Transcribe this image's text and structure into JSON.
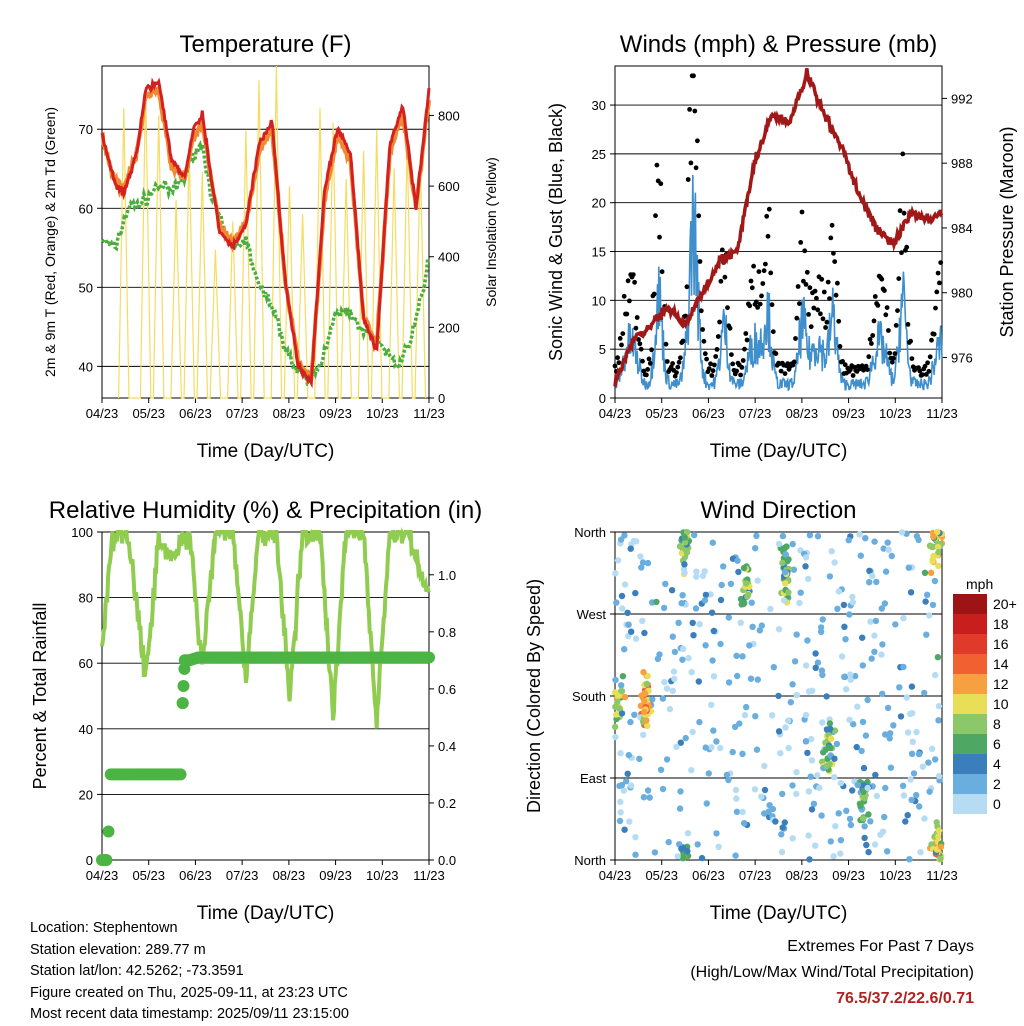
{
  "station": {
    "location_label": "Location: Stephentown",
    "elevation_label": "Station elevation: 289.77 m",
    "latlon_label": "Station lat/lon: 42.5262; -73.3591",
    "created_label": "Figure created on Thu, 2025-09-11, at 23:23 UTC",
    "recent_label": "Most recent data timestamp: 2025/09/11 23:15:00"
  },
  "extremes": {
    "title": "Extremes For Past 7 Days",
    "subtitle": "(High/Low/Max Wind/Total Precipitation)",
    "values": "76.5/37.2/22.6/0.71"
  },
  "colors": {
    "temp_2m": "#d42020",
    "temp_9m": "#f08a30",
    "dewpoint": "#4aae3c",
    "insolation": "#f5dc60",
    "wind": "#3f8fcc",
    "gust": "#000000",
    "pressure": "#a01818",
    "rh": "#8fcc50",
    "precip": "#4cb443"
  },
  "chart_data": [
    {
      "type": "line",
      "title": "Temperature (F)",
      "xlabel": "Time (Day/UTC)",
      "ylabel": "2m & 9m T (Red, Orange) & 2m Td (Green)",
      "y2label": "Solar Insolation (Yellow)",
      "x_ticks": [
        "04/23",
        "05/23",
        "06/23",
        "07/23",
        "08/23",
        "09/23",
        "10/23",
        "11/23"
      ],
      "y_ticks": [
        40,
        50,
        60,
        70
      ],
      "y2_ticks": [
        0,
        200,
        400,
        600,
        800
      ],
      "ylim": [
        36,
        78
      ],
      "y2lim": [
        0,
        940
      ],
      "series": [
        {
          "key": "t2m",
          "x": [
            0,
            0.3,
            0.5,
            0.8,
            1.0,
            1.3,
            1.6,
            1.9,
            2.1,
            2.3,
            2.5,
            2.7,
            3.0,
            3.3,
            3.6,
            3.9,
            4.2,
            4.5,
            4.8,
            5.1,
            5.4,
            5.7,
            6.0,
            6.3,
            6.6,
            6.9,
            7.2,
            7.5
          ],
          "y": [
            69.5,
            63,
            62,
            67,
            75,
            76,
            66,
            64,
            70,
            72,
            64,
            57,
            55,
            58,
            68,
            71,
            51,
            40,
            38,
            62,
            70,
            67,
            46,
            42,
            68,
            73,
            60,
            75
          ]
        },
        {
          "key": "t9m",
          "x": [
            0,
            0.3,
            0.5,
            0.8,
            1.0,
            1.3,
            1.6,
            1.9,
            2.1,
            2.3,
            2.5,
            2.7,
            3.0,
            3.3,
            3.6,
            3.9,
            4.2,
            4.5,
            4.8,
            5.1,
            5.4,
            5.7,
            6.0,
            6.3,
            6.6,
            6.9,
            7.2,
            7.5
          ],
          "y": [
            69,
            63.5,
            62.5,
            67,
            74,
            75,
            65,
            64,
            69,
            71,
            64,
            57.5,
            55.5,
            58,
            67,
            70,
            51,
            40.5,
            38.5,
            61,
            69,
            66,
            46.5,
            42.5,
            67,
            72,
            60,
            74
          ]
        },
        {
          "key": "td",
          "x": [
            0,
            0.3,
            0.6,
            1.0,
            1.3,
            1.6,
            1.9,
            2.1,
            2.3,
            2.5,
            2.8,
            3.0,
            3.3,
            3.6,
            3.9,
            4.1,
            4.4,
            4.7,
            5.0,
            5.3,
            5.6,
            5.9,
            6.2,
            6.5,
            6.8,
            7.1,
            7.4,
            7.5
          ],
          "y": [
            56,
            55,
            60,
            61,
            63,
            62,
            64,
            67,
            68,
            62,
            57,
            55,
            56,
            50,
            48,
            44,
            40,
            38,
            40,
            46,
            47,
            45,
            44,
            42,
            40,
            44,
            50,
            55
          ]
        }
      ],
      "insolation_peaks_x": [
        0.5,
        1.0,
        1.3,
        1.7,
        2.0,
        2.3,
        2.6,
        3.0,
        3.3,
        3.6,
        4.0,
        4.3,
        4.6,
        5.0,
        5.3,
        5.6,
        6.0,
        6.3,
        6.7,
        7.0,
        7.3
      ],
      "insolation_peaks_y": [
        820,
        880,
        800,
        560,
        700,
        640,
        420,
        500,
        760,
        900,
        940,
        600,
        520,
        820,
        780,
        620,
        700,
        760,
        650,
        720,
        680
      ]
    },
    {
      "type": "line",
      "title": "Winds (mph) & Pressure (mb)",
      "xlabel": "Time (Day/UTC)",
      "ylabel": "Sonic Wind & Gust (Blue, Black)",
      "y2label": "Station Pressure (Maroon)",
      "x_ticks": [
        "04/23",
        "05/23",
        "06/23",
        "07/23",
        "08/23",
        "09/23",
        "10/23",
        "11/23"
      ],
      "y_ticks": [
        0,
        5,
        10,
        15,
        20,
        25,
        30
      ],
      "y2_ticks": [
        976,
        980,
        984,
        988,
        992
      ],
      "ylim": [
        0,
        34
      ],
      "y2lim": [
        973.5,
        994
      ],
      "pressure": {
        "x": [
          0,
          0.4,
          0.8,
          1.2,
          1.6,
          2.0,
          2.4,
          2.8,
          3.2,
          3.6,
          4.0,
          4.4,
          4.8,
          5.2,
          5.6,
          6.0,
          6.4,
          6.8,
          7.2,
          7.5
        ],
        "y": [
          974.5,
          977,
          978,
          979,
          978,
          980,
          982,
          982.5,
          988,
          991,
          990.5,
          993.5,
          991,
          989,
          986,
          984,
          983,
          985,
          984.5,
          985
        ]
      },
      "gust_peaks": [
        {
          "x": 1.0,
          "y": 23
        },
        {
          "x": 1.8,
          "y": 31
        },
        {
          "x": 2.5,
          "y": 15
        },
        {
          "x": 3.5,
          "y": 18
        },
        {
          "x": 4.3,
          "y": 16
        },
        {
          "x": 5.0,
          "y": 18
        },
        {
          "x": 6.6,
          "y": 22
        }
      ]
    },
    {
      "type": "line",
      "title": "Relative Humidity (%) & Precipitation (in)",
      "xlabel": "Time (Day/UTC)",
      "ylabel": "Percent & Total Rainfall",
      "x_ticks": [
        "04/23",
        "05/23",
        "06/23",
        "07/23",
        "08/23",
        "09/23",
        "10/23",
        "11/23"
      ],
      "y_ticks": [
        0,
        20,
        40,
        60,
        80,
        100
      ],
      "y2_ticks": [
        "0.0",
        "0.2",
        "0.4",
        "0.6",
        "0.8",
        "1.0"
      ],
      "ylim": [
        0,
        100
      ],
      "y2lim": [
        0,
        1.15
      ],
      "series": [
        {
          "key": "rh",
          "x": [
            0,
            0.2,
            0.4,
            0.6,
            1.0,
            1.3,
            1.6,
            2.0,
            2.3,
            2.6,
            3.0,
            3.3,
            3.6,
            4.0,
            4.3,
            4.6,
            5.0,
            5.3,
            5.6,
            6.0,
            6.3,
            6.6,
            7.0,
            7.5
          ],
          "y": [
            62,
            95,
            100,
            100,
            55,
            98,
            92,
            100,
            58,
            100,
            100,
            55,
            100,
            100,
            50,
            100,
            100,
            45,
            100,
            100,
            42,
            100,
            100,
            80
          ]
        },
        {
          "key": "precip",
          "x": [
            0,
            0.1,
            0.15,
            0.2,
            1.8,
            1.85,
            1.9,
            2.0,
            2.2,
            7.5
          ],
          "y": [
            0,
            0,
            0.1,
            0.3,
            0.3,
            0.55,
            0.7,
            0.7,
            0.71,
            0.71
          ]
        }
      ]
    },
    {
      "type": "scatter",
      "title": "Wind Direction",
      "xlabel": "Time (Day/UTC)",
      "ylabel": "Direction (Colored By Speed)",
      "x_ticks": [
        "04/23",
        "05/23",
        "06/23",
        "07/23",
        "08/23",
        "09/23",
        "10/23",
        "11/23"
      ],
      "y_ticks": [
        "North",
        "East",
        "South",
        "West",
        "North"
      ],
      "legend_unit": "mph",
      "legend_labels": [
        "20+",
        "18",
        "16",
        "14",
        "12",
        "10",
        "8",
        "6",
        "4",
        "2",
        "0"
      ],
      "legend_colors": [
        "#9e1414",
        "#c81e1e",
        "#e03a2a",
        "#f06030",
        "#f6a040",
        "#e8de58",
        "#8cc86a",
        "#4ea864",
        "#3a7fbc",
        "#6aaee0",
        "#b6dcf4"
      ]
    }
  ]
}
